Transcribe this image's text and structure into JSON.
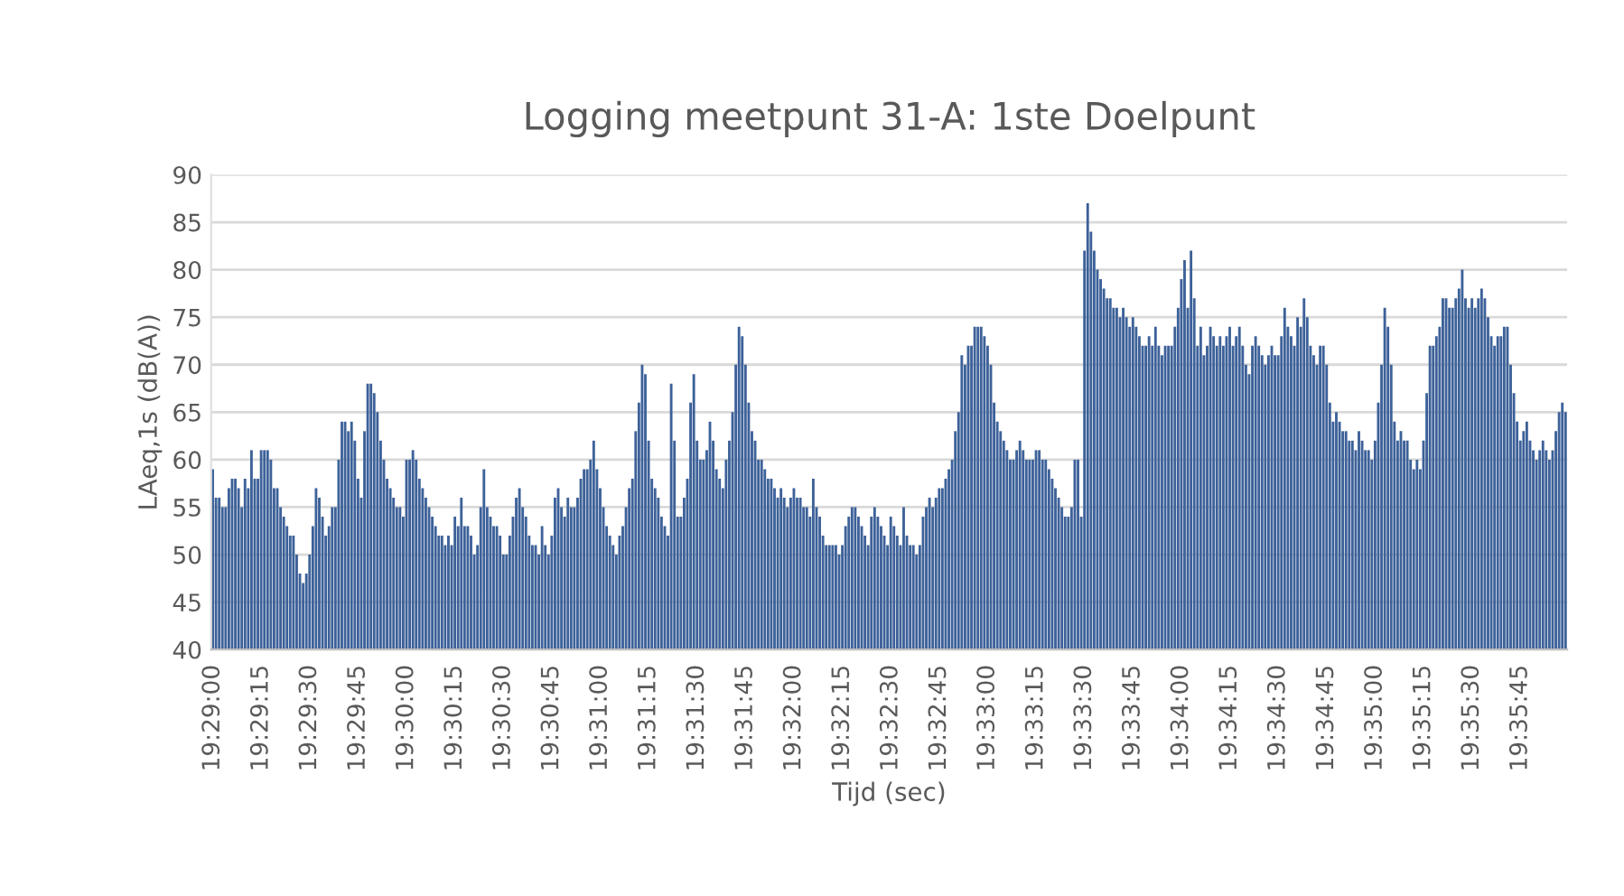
{
  "chart_data": {
    "type": "bar",
    "title": "Logging meetpunt 31-A: 1ste Doelpunt",
    "xlabel": "Tijd (sec)",
    "ylabel": "LAeq,1s (dB(A))",
    "ylim": [
      40,
      90
    ],
    "yticks": [
      40,
      45,
      50,
      55,
      60,
      65,
      70,
      75,
      80,
      85,
      90
    ],
    "grid": "y",
    "color": "#3d6199",
    "categories": [
      "19:29:00",
      null,
      null,
      null,
      null,
      null,
      null,
      null,
      null,
      null,
      null,
      null,
      null,
      null,
      null,
      "19:29:15",
      null,
      null,
      null,
      null,
      null,
      null,
      null,
      null,
      null,
      null,
      null,
      null,
      null,
      null,
      "19:29:30",
      null,
      null,
      null,
      null,
      null,
      null,
      null,
      null,
      null,
      null,
      null,
      null,
      null,
      null,
      "19:29:45",
      null,
      null,
      null,
      null,
      null,
      null,
      null,
      null,
      null,
      null,
      null,
      null,
      null,
      null,
      "19:30:00",
      null,
      null,
      null,
      null,
      null,
      null,
      null,
      null,
      null,
      null,
      null,
      null,
      null,
      null,
      "19:30:15",
      null,
      null,
      null,
      null,
      null,
      null,
      null,
      null,
      null,
      null,
      null,
      null,
      null,
      null,
      "19:30:30",
      null,
      null,
      null,
      null,
      null,
      null,
      null,
      null,
      null,
      null,
      null,
      null,
      null,
      null,
      "19:30:45",
      null,
      null,
      null,
      null,
      null,
      null,
      null,
      null,
      null,
      null,
      null,
      null,
      null,
      null,
      "19:31:00",
      null,
      null,
      null,
      null,
      null,
      null,
      null,
      null,
      null,
      null,
      null,
      null,
      null,
      null,
      "19:31:15",
      null,
      null,
      null,
      null,
      null,
      null,
      null,
      null,
      null,
      null,
      null,
      null,
      null,
      null,
      "19:31:30",
      null,
      null,
      null,
      null,
      null,
      null,
      null,
      null,
      null,
      null,
      null,
      null,
      null,
      null,
      "19:31:45",
      null,
      null,
      null,
      null,
      null,
      null,
      null,
      null,
      null,
      null,
      null,
      null,
      null,
      null,
      "19:32:00",
      null,
      null,
      null,
      null,
      null,
      null,
      null,
      null,
      null,
      null,
      null,
      null,
      null,
      null,
      "19:32:15",
      null,
      null,
      null,
      null,
      null,
      null,
      null,
      null,
      null,
      null,
      null,
      null,
      null,
      null,
      "19:32:30",
      null,
      null,
      null,
      null,
      null,
      null,
      null,
      null,
      null,
      null,
      null,
      null,
      null,
      null,
      "19:32:45",
      null,
      null,
      null,
      null,
      null,
      null,
      null,
      null,
      null,
      null,
      null,
      null,
      null,
      null,
      "19:33:00",
      null,
      null,
      null,
      null,
      null,
      null,
      null,
      null,
      null,
      null,
      null,
      null,
      null,
      null,
      "19:33:15",
      null,
      null,
      null,
      null,
      null,
      null,
      null,
      null,
      null,
      null,
      null,
      null,
      null,
      null,
      "19:33:30",
      null,
      null,
      null,
      null,
      null,
      null,
      null,
      null,
      null,
      null,
      null,
      null,
      null,
      null,
      "19:33:45",
      null,
      null,
      null,
      null,
      null,
      null,
      null,
      null,
      null,
      null,
      null,
      null,
      null,
      null,
      "19:34:00",
      null,
      null,
      null,
      null,
      null,
      null,
      null,
      null,
      null,
      null,
      null,
      null,
      null,
      null,
      "19:34:15",
      null,
      null,
      null,
      null,
      null,
      null,
      null,
      null,
      null,
      null,
      null,
      null,
      null,
      null,
      "19:34:30",
      null,
      null,
      null,
      null,
      null,
      null,
      null,
      null,
      null,
      null,
      null,
      null,
      null,
      null,
      "19:34:45",
      null,
      null,
      null,
      null,
      null,
      null,
      null,
      null,
      null,
      null,
      null,
      null,
      null,
      null,
      "19:35:00",
      null,
      null,
      null,
      null,
      null,
      null,
      null,
      null,
      null,
      null,
      null,
      null,
      null,
      null,
      "19:35:15",
      null,
      null,
      null,
      null,
      null,
      null,
      null,
      null,
      null,
      null,
      null,
      null,
      null,
      null,
      "19:35:30",
      null,
      null,
      null,
      null,
      null,
      null,
      null,
      null,
      null,
      null,
      null,
      null,
      null,
      null,
      "19:35:45",
      null,
      null,
      null,
      null,
      null,
      null,
      null,
      null,
      null,
      null,
      null,
      null,
      null,
      null
    ],
    "values": [
      59,
      56,
      56,
      55,
      55,
      57,
      58,
      58,
      57,
      55,
      58,
      57,
      61,
      58,
      58,
      61,
      61,
      61,
      60,
      57,
      57,
      55,
      54,
      53,
      52,
      52,
      50,
      48,
      47,
      48,
      50,
      53,
      57,
      56,
      54,
      52,
      53,
      55,
      55,
      60,
      64,
      64,
      63,
      64,
      62,
      58,
      56,
      63,
      68,
      68,
      67,
      65,
      62,
      60,
      58,
      57,
      56,
      55,
      55,
      54,
      60,
      60,
      61,
      60,
      58,
      57,
      56,
      55,
      54,
      53,
      52,
      52,
      51,
      52,
      51,
      54,
      53,
      56,
      53,
      53,
      52,
      50,
      51,
      55,
      59,
      55,
      54,
      53,
      53,
      52,
      50,
      50,
      52,
      54,
      56,
      57,
      55,
      54,
      52,
      51,
      51,
      50,
      53,
      51,
      50,
      52,
      56,
      57,
      55,
      54,
      56,
      55,
      55,
      56,
      58,
      59,
      59,
      60,
      62,
      59,
      57,
      55,
      53,
      52,
      51,
      50,
      52,
      53,
      55,
      57,
      58,
      63,
      66,
      70,
      69,
      62,
      58,
      57,
      56,
      54,
      53,
      52,
      68,
      62,
      54,
      54,
      56,
      58,
      66,
      69,
      62,
      60,
      60,
      61,
      64,
      62,
      59,
      58,
      57,
      60,
      62,
      65,
      70,
      74,
      73,
      70,
      66,
      63,
      62,
      60,
      60,
      59,
      58,
      58,
      57,
      56,
      57,
      56,
      55,
      56,
      57,
      56,
      56,
      55,
      55,
      54,
      58,
      55,
      54,
      52,
      51,
      51,
      51,
      51,
      50,
      51,
      53,
      54,
      55,
      55,
      54,
      53,
      52,
      51,
      54,
      55,
      54,
      53,
      52,
      51,
      54,
      53,
      52,
      51,
      55,
      52,
      51,
      51,
      50,
      51,
      54,
      55,
      56,
      55,
      56,
      57,
      57,
      58,
      59,
      60,
      63,
      65,
      71,
      70,
      72,
      72,
      74,
      74,
      74,
      73,
      72,
      70,
      66,
      64,
      63,
      62,
      61,
      60,
      60,
      61,
      62,
      61,
      60,
      60,
      60,
      61,
      61,
      60,
      60,
      59,
      58,
      57,
      56,
      55,
      54,
      54,
      55,
      60,
      60,
      54,
      82,
      87,
      84,
      82,
      80,
      79,
      78,
      77,
      77,
      76,
      76,
      75,
      76,
      75,
      74,
      75,
      74,
      73,
      72,
      72,
      73,
      72,
      74,
      72,
      71,
      72,
      72,
      72,
      74,
      76,
      79,
      81,
      76,
      82,
      77,
      72,
      74,
      71,
      72,
      74,
      73,
      72,
      73,
      72,
      73,
      74,
      72,
      73,
      74,
      72,
      70,
      69,
      72,
      73,
      72,
      71,
      70,
      71,
      72,
      71,
      71,
      73,
      76,
      74,
      73,
      72,
      75,
      74,
      77,
      75,
      72,
      71,
      70,
      72,
      72,
      70,
      66,
      64,
      65,
      64,
      63,
      63,
      62,
      62,
      61,
      63,
      62,
      61,
      61,
      60,
      62,
      66,
      70,
      76,
      74,
      70,
      64,
      62,
      63,
      62,
      62,
      60,
      59,
      60,
      59,
      62,
      67,
      72,
      72,
      73,
      74,
      77,
      77,
      76,
      76,
      77,
      78,
      80,
      77,
      76,
      77,
      76,
      77,
      78,
      77,
      75,
      73,
      72,
      73,
      73,
      74,
      74,
      70,
      67,
      64,
      62,
      63,
      64,
      62,
      61,
      60,
      61,
      62,
      61,
      60,
      61,
      63,
      65,
      66,
      65
    ]
  }
}
